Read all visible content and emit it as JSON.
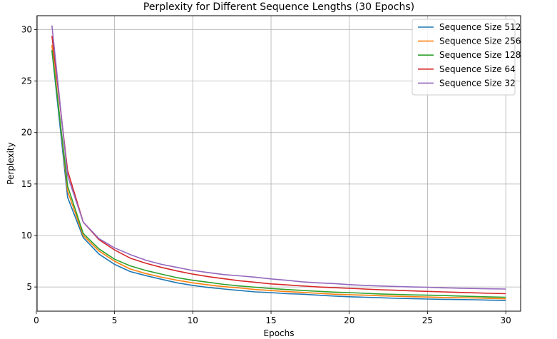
{
  "chart_data": {
    "type": "line",
    "title": "Perplexity for Different Sequence Lengths (30 Epochs)",
    "xlabel": "Epochs",
    "ylabel": "Perplexity",
    "xlim": [
      0.05,
      30.95
    ],
    "ylim": [
      2.65,
      31.35
    ],
    "xticks": [
      0,
      5,
      10,
      15,
      20,
      25,
      30
    ],
    "yticks": [
      5,
      10,
      15,
      20,
      25,
      30
    ],
    "grid": true,
    "legend_position": "top-right",
    "x": [
      1,
      2,
      3,
      4,
      5,
      6,
      7,
      8,
      9,
      10,
      11,
      12,
      13,
      14,
      15,
      16,
      17,
      18,
      19,
      20,
      21,
      22,
      23,
      24,
      25,
      26,
      27,
      28,
      29,
      30
    ],
    "series": [
      {
        "name": "Sequence Size 512",
        "color": "#1f77b4",
        "values": [
          28.0,
          13.7,
          9.8,
          8.2,
          7.2,
          6.5,
          6.1,
          5.75,
          5.4,
          5.15,
          4.95,
          4.8,
          4.65,
          4.52,
          4.45,
          4.35,
          4.3,
          4.2,
          4.12,
          4.05,
          4.0,
          3.95,
          3.9,
          3.87,
          3.83,
          3.8,
          3.78,
          3.76,
          3.72,
          3.7
        ]
      },
      {
        "name": "Sequence Size 256",
        "color": "#ff7f0e",
        "values": [
          28.5,
          14.3,
          10.0,
          8.5,
          7.5,
          6.75,
          6.3,
          5.95,
          5.65,
          5.4,
          5.2,
          5.03,
          4.9,
          4.75,
          4.65,
          4.55,
          4.47,
          4.38,
          4.3,
          4.25,
          4.2,
          4.15,
          4.1,
          4.06,
          4.02,
          3.98,
          3.95,
          3.93,
          3.89,
          3.85
        ]
      },
      {
        "name": "Sequence Size 128",
        "color": "#2ca02c",
        "values": [
          28.0,
          14.8,
          10.2,
          8.7,
          7.7,
          7.05,
          6.6,
          6.25,
          5.9,
          5.65,
          5.45,
          5.25,
          5.1,
          4.97,
          4.85,
          4.75,
          4.67,
          4.58,
          4.5,
          4.45,
          4.38,
          4.32,
          4.28,
          4.23,
          4.2,
          4.17,
          4.12,
          4.08,
          4.03,
          4.0
        ]
      },
      {
        "name": "Sequence Size 64",
        "color": "#d62728",
        "values": [
          29.4,
          16.3,
          11.3,
          9.6,
          8.6,
          7.8,
          7.3,
          6.9,
          6.55,
          6.25,
          6.0,
          5.8,
          5.6,
          5.45,
          5.3,
          5.2,
          5.1,
          5.0,
          4.93,
          4.87,
          4.8,
          4.73,
          4.68,
          4.62,
          4.57,
          4.52,
          4.47,
          4.43,
          4.38,
          4.35
        ]
      },
      {
        "name": "Sequence Size 32",
        "color": "#9467bd",
        "values": [
          30.4,
          15.8,
          11.3,
          9.7,
          8.8,
          8.15,
          7.6,
          7.2,
          6.9,
          6.6,
          6.4,
          6.2,
          6.08,
          5.95,
          5.78,
          5.65,
          5.5,
          5.4,
          5.33,
          5.23,
          5.15,
          5.1,
          5.05,
          5.0,
          4.97,
          4.92,
          4.88,
          4.85,
          4.82,
          4.8
        ]
      }
    ]
  }
}
